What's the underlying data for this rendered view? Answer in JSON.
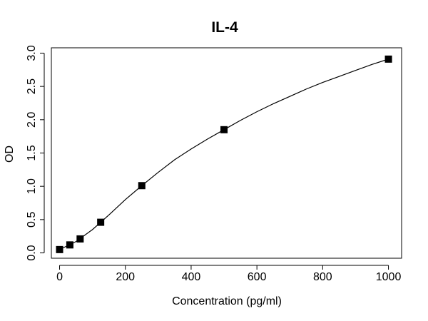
{
  "chart_data": {
    "type": "scatter",
    "title": "IL-4",
    "xlabel": "Concentration (pg/ml)",
    "ylabel": "OD",
    "xlim": [
      -25,
      1040
    ],
    "ylim": [
      -0.08,
      3.08
    ],
    "xticks": [
      0,
      200,
      400,
      600,
      800,
      1000
    ],
    "xtick_labels": [
      "0",
      "200",
      "400",
      "600",
      "800",
      "1000"
    ],
    "yticks": [
      0.0,
      0.5,
      1.0,
      1.5,
      2.0,
      2.5,
      3.0
    ],
    "ytick_labels": [
      "0.0",
      "0.5",
      "1.0",
      "1.5",
      "2.0",
      "2.5",
      "3.0"
    ],
    "grid": false,
    "series": [
      {
        "x": [
          0,
          31.25,
          62.5,
          125,
          250,
          500,
          1000
        ],
        "y": [
          0.05,
          0.12,
          0.21,
          0.46,
          1.01,
          1.85,
          2.91
        ],
        "marker": "square",
        "color": "#000000"
      }
    ],
    "fit_curve": {
      "x": [
        0,
        50,
        100,
        150,
        200,
        250,
        300,
        350,
        400,
        450,
        500,
        550,
        600,
        650,
        700,
        750,
        800,
        850,
        900,
        950,
        1000
      ],
      "y": [
        0.05,
        0.17,
        0.35,
        0.57,
        0.8,
        1.01,
        1.21,
        1.4,
        1.56,
        1.71,
        1.85,
        1.99,
        2.12,
        2.24,
        2.35,
        2.46,
        2.56,
        2.65,
        2.74,
        2.83,
        2.91
      ],
      "color": "#000000"
    }
  }
}
